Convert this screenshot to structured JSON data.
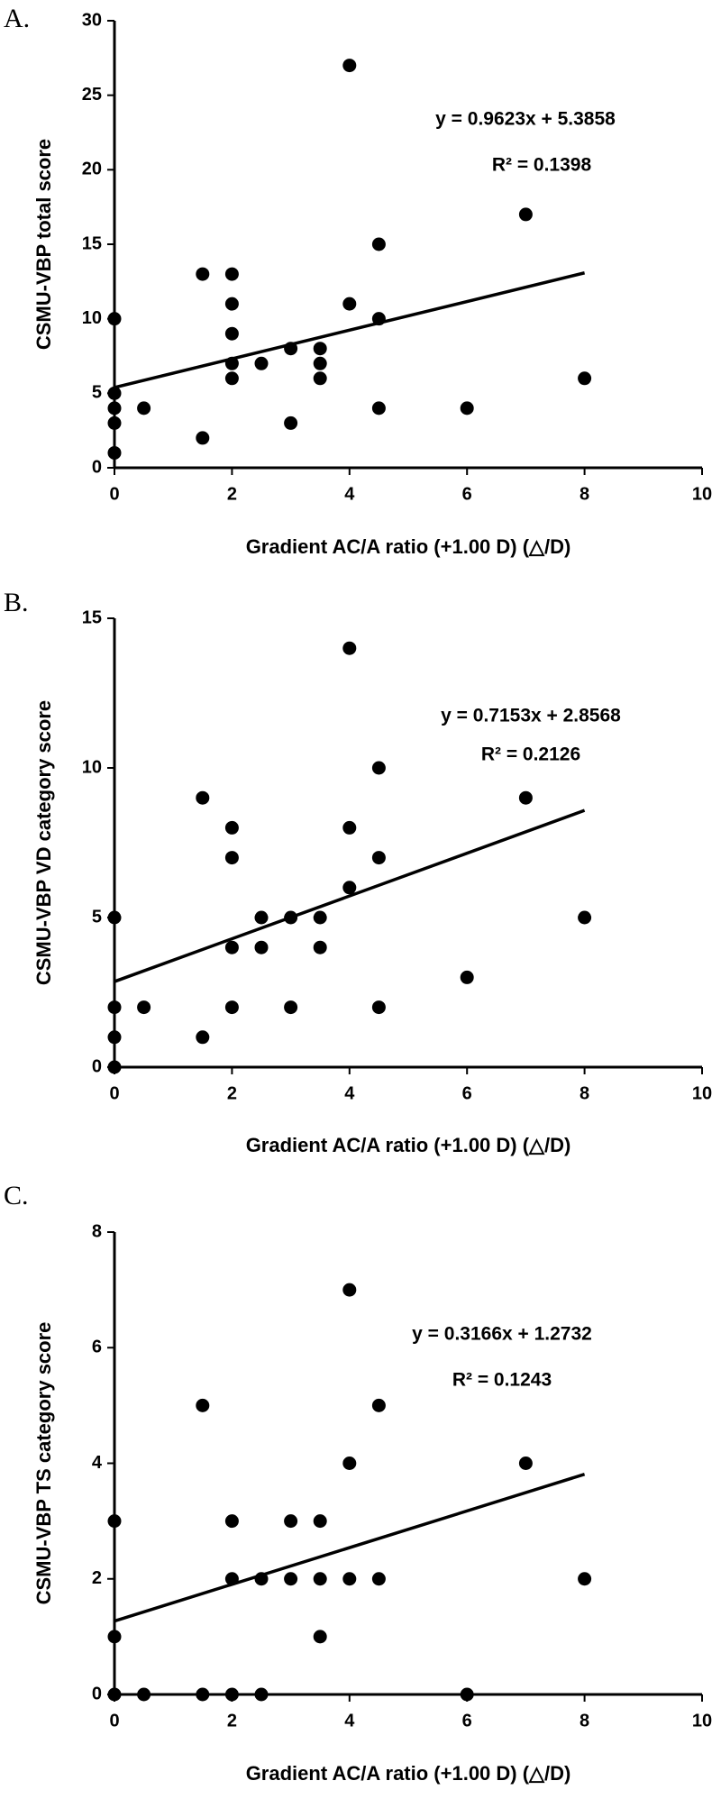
{
  "chart_data": [
    {
      "type": "scatter",
      "panel_label": "A.",
      "ylabel": "CSMU-VBP total score",
      "xlabel": "Gradient  AC/A ratio  (+1.00 D)  (△/D)",
      "annotations": [
        "y = 0.9623x + 5.3858",
        "R² = 0.1398"
      ],
      "color": "#000000",
      "x": [
        0,
        0,
        0,
        0,
        0,
        0.5,
        1.5,
        1.5,
        2,
        2,
        2,
        2,
        2,
        2.5,
        3,
        3,
        3.5,
        3.5,
        3.5,
        4,
        4,
        4.5,
        4.5,
        4.5,
        6,
        7,
        8
      ],
      "y": [
        10,
        5,
        4,
        3,
        1,
        4,
        13,
        2,
        13,
        11,
        9,
        7,
        6,
        7,
        8,
        3,
        8,
        7,
        6,
        27,
        11,
        15,
        10,
        4,
        4,
        17,
        6
      ],
      "trendline": {
        "x": [
          0,
          8
        ],
        "y": [
          5.39,
          13.08
        ]
      },
      "xlim": [
        0,
        10
      ],
      "ylim": [
        0,
        30
      ],
      "xticks": [
        0,
        2,
        4,
        6,
        8,
        10
      ],
      "yticks": [
        0,
        5,
        10,
        15,
        20,
        25,
        30
      ]
    },
    {
      "type": "scatter",
      "panel_label": "B.",
      "ylabel": "CSMU-VBP VD category score",
      "xlabel": "Gradient  AC/A ratio  (+1.00 D)  (△/D)",
      "annotations": [
        "y = 0.7153x + 2.8568",
        "R² = 0.2126"
      ],
      "color": "#000000",
      "x": [
        0,
        0,
        0,
        0,
        0.5,
        1.5,
        1.5,
        2,
        2,
        2,
        2,
        2.5,
        2.5,
        3,
        3,
        3.5,
        3.5,
        4,
        4,
        4,
        4.5,
        4.5,
        4.5,
        6,
        7,
        8
      ],
      "y": [
        5,
        2,
        1,
        0,
        2,
        9,
        1,
        8,
        7,
        4,
        2,
        5,
        4,
        5,
        2,
        5,
        4,
        14,
        8,
        6,
        10,
        7,
        2,
        3,
        9,
        5
      ],
      "trendline": {
        "x": [
          0,
          8
        ],
        "y": [
          2.86,
          8.58
        ]
      },
      "xlim": [
        0,
        10
      ],
      "ylim": [
        0,
        15
      ],
      "xticks": [
        0,
        2,
        4,
        6,
        8,
        10
      ],
      "yticks": [
        0,
        5,
        10,
        15
      ]
    },
    {
      "type": "scatter",
      "panel_label": "C.",
      "ylabel": "CSMU-VBP TS category score",
      "xlabel": "Gradient  AC/A  ratio (+1.00 D)  (△/D)",
      "annotations": [
        "y = 0.3166x + 1.2732",
        "R² = 0.1243"
      ],
      "color": "#000000",
      "x": [
        0,
        0,
        0,
        0.5,
        1.5,
        1.5,
        2,
        2,
        2,
        2.5,
        2.5,
        3,
        3,
        3.5,
        3.5,
        3.5,
        4,
        4,
        4,
        4.5,
        4.5,
        6,
        7,
        8
      ],
      "y": [
        3,
        1,
        0,
        0,
        5,
        0,
        3,
        2,
        0,
        2,
        0,
        3,
        2,
        3,
        2,
        1,
        7,
        4,
        2,
        5,
        2,
        0,
        4,
        2
      ],
      "trendline": {
        "x": [
          0,
          8
        ],
        "y": [
          1.27,
          3.81
        ]
      },
      "xlim": [
        0,
        10
      ],
      "ylim": [
        0,
        8
      ],
      "xticks": [
        0,
        2,
        4,
        6,
        8,
        10
      ],
      "yticks": [
        0,
        2,
        4,
        6,
        8
      ]
    }
  ]
}
